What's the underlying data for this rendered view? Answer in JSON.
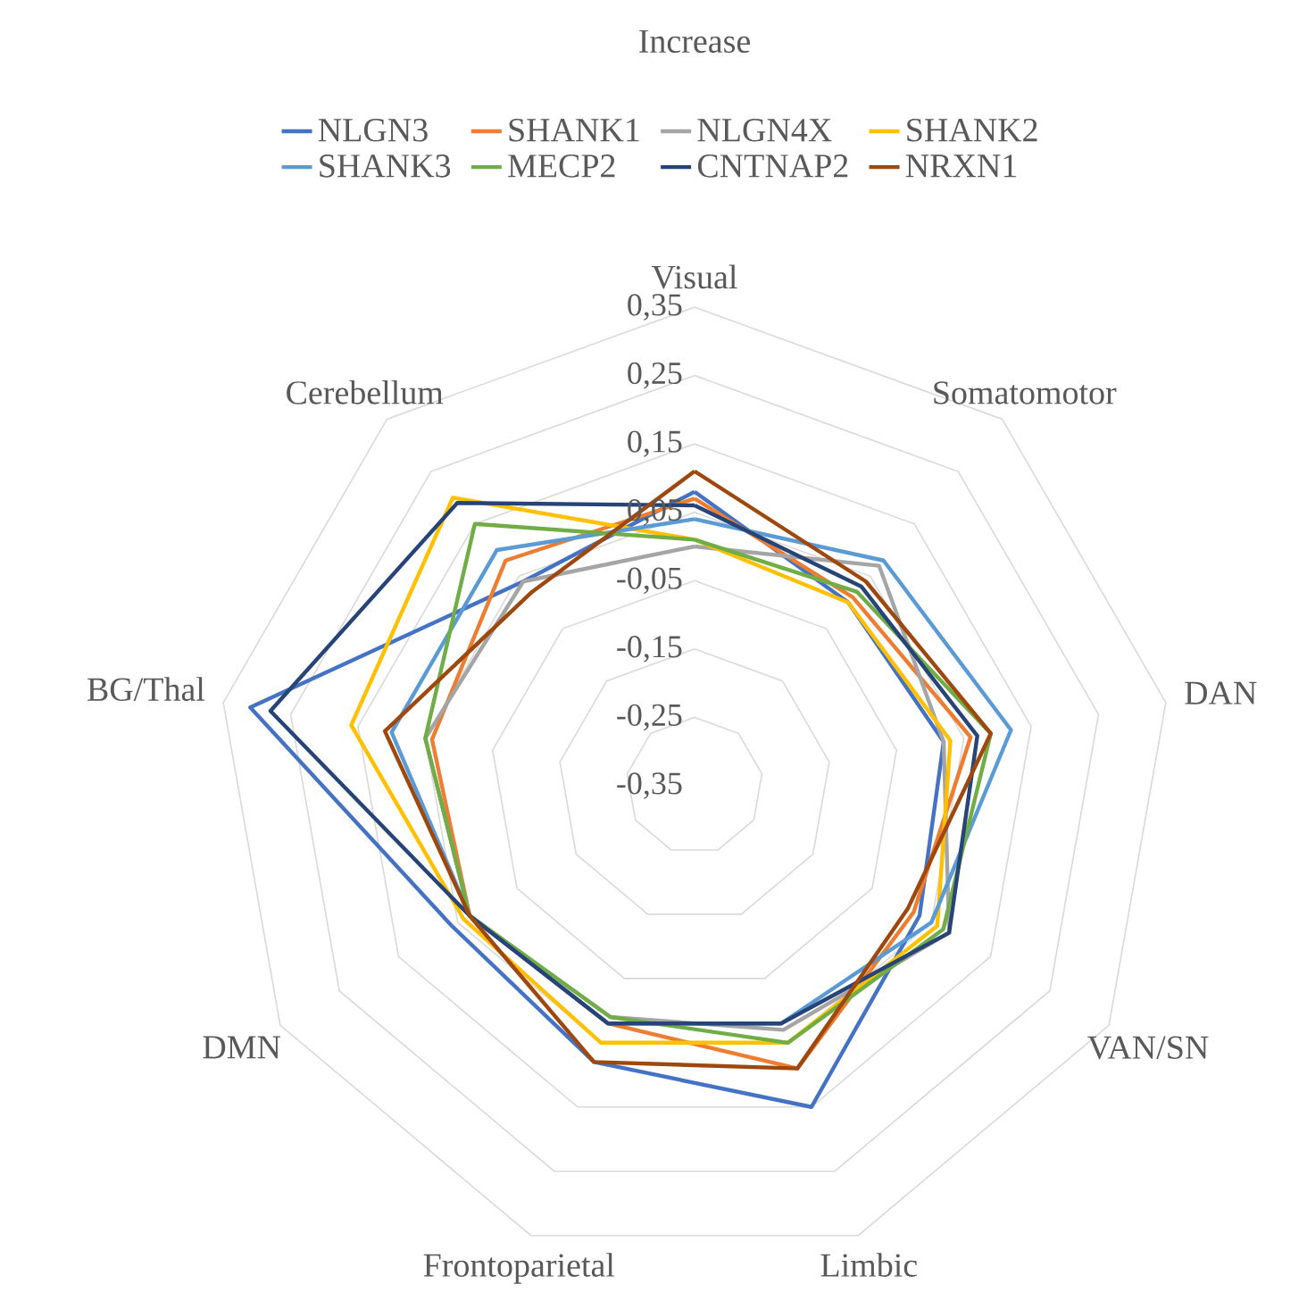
{
  "chart_data": {
    "type": "radar",
    "title": "Increase",
    "categories": [
      "Visual",
      "Somatomotor",
      "DAN",
      "VAN/SN",
      "Limbic",
      "Frontoparietal",
      "DMN",
      "BG/Thal",
      "Cerebellum"
    ],
    "series": [
      {
        "name": "NLGN3",
        "color": "#4472c4",
        "values": [
          0.08,
          0.0,
          0.02,
          0.03,
          0.15,
          0.08,
          0.06,
          0.31,
          0.04
        ]
      },
      {
        "name": "SHANK1",
        "color": "#ed7d31",
        "values": [
          0.07,
          0.01,
          0.06,
          0.02,
          0.09,
          0.02,
          0.03,
          0.04,
          0.08
        ]
      },
      {
        "name": "NLGN4X",
        "color": "#a5a5a5",
        "values": [
          0.0,
          0.07,
          0.02,
          0.08,
          0.03,
          0.01,
          0.03,
          0.05,
          0.04
        ]
      },
      {
        "name": "SHANK2",
        "color": "#ffc000",
        "values": [
          0.01,
          0.0,
          0.03,
          0.06,
          0.05,
          0.05,
          0.04,
          0.16,
          0.2
        ]
      },
      {
        "name": "SHANK3",
        "color": "#5b9bd5",
        "values": [
          0.04,
          0.08,
          0.12,
          0.05,
          0.02,
          0.02,
          0.03,
          0.1,
          0.1
        ]
      },
      {
        "name": "MECP2",
        "color": "#70ad47",
        "values": [
          0.01,
          0.02,
          0.09,
          0.07,
          0.05,
          0.01,
          0.03,
          0.05,
          0.15
        ]
      },
      {
        "name": "CNTNAP2",
        "color": "#264478",
        "values": [
          0.06,
          0.03,
          0.07,
          0.08,
          0.02,
          0.02,
          0.03,
          0.28,
          0.19
        ]
      },
      {
        "name": "NRXN1",
        "color": "#9e480e",
        "values": [
          0.11,
          0.04,
          0.09,
          0.01,
          0.09,
          0.08,
          0.03,
          0.11,
          0.02
        ]
      }
    ],
    "ylim": [
      -0.35,
      0.35
    ],
    "yticks": [
      {
        "value": -0.35,
        "label": "-0,35"
      },
      {
        "value": -0.25,
        "label": "-0,25"
      },
      {
        "value": -0.15,
        "label": "-0,15"
      },
      {
        "value": -0.05,
        "label": "-0,05"
      },
      {
        "value": 0.05,
        "label": "0,05"
      },
      {
        "value": 0.15,
        "label": "0,15"
      },
      {
        "value": 0.25,
        "label": "0,25"
      },
      {
        "value": 0.35,
        "label": "0,35"
      }
    ],
    "grid": true,
    "legend": "top"
  }
}
